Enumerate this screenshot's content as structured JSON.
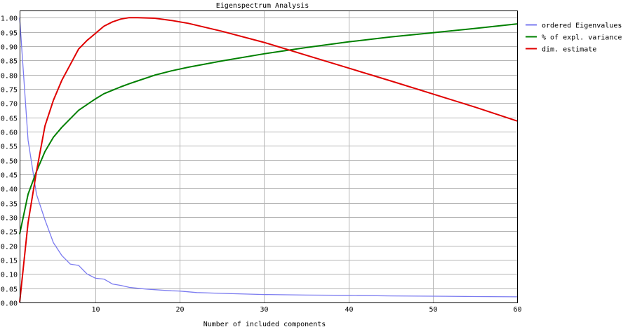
{
  "chart_data": {
    "type": "line",
    "title": "Eigenspectrum Analysis",
    "xlabel": "Number of included components",
    "ylabel": "",
    "xlim": [
      1,
      60
    ],
    "ylim": [
      0,
      1.025
    ],
    "x_ticks": [
      10,
      20,
      30,
      40,
      50,
      60
    ],
    "y_ticks": [
      0.0,
      0.05,
      0.1,
      0.15,
      0.2,
      0.25,
      0.3,
      0.35,
      0.4,
      0.45,
      0.5,
      0.55,
      0.6,
      0.65,
      0.7,
      0.75,
      0.8,
      0.85,
      0.9,
      0.95,
      1.0
    ],
    "grid": true,
    "legend_position": "right",
    "series": [
      {
        "name": "ordered Eigenvalues",
        "color": "#7b7bf0",
        "x": [
          1,
          2,
          3,
          4,
          5,
          6,
          7,
          8,
          9,
          10,
          11,
          12,
          13,
          14,
          15,
          16,
          17,
          18,
          19,
          20,
          22,
          25,
          30,
          35,
          40,
          45,
          50,
          55,
          60
        ],
        "y": [
          1.0,
          0.57,
          0.38,
          0.29,
          0.21,
          0.165,
          0.135,
          0.13,
          0.1,
          0.085,
          0.082,
          0.065,
          0.06,
          0.053,
          0.05,
          0.047,
          0.045,
          0.043,
          0.041,
          0.04,
          0.035,
          0.032,
          0.028,
          0.026,
          0.025,
          0.023,
          0.022,
          0.021,
          0.02
        ]
      },
      {
        "name": "% of expl. variance",
        "color": "#008000",
        "x": [
          1,
          2,
          3,
          4,
          5,
          6,
          7,
          8,
          9,
          10,
          11,
          12,
          13,
          14,
          15,
          17,
          19,
          21,
          23,
          25,
          30,
          35,
          40,
          45,
          50,
          55,
          60
        ],
        "y": [
          0.24,
          0.38,
          0.46,
          0.53,
          0.58,
          0.615,
          0.645,
          0.675,
          0.695,
          0.715,
          0.733,
          0.745,
          0.757,
          0.768,
          0.778,
          0.798,
          0.813,
          0.826,
          0.837,
          0.848,
          0.873,
          0.895,
          0.915,
          0.932,
          0.947,
          0.962,
          0.978
        ]
      },
      {
        "name": "dim. estimate",
        "color": "#e00000",
        "x": [
          1,
          2,
          3,
          4,
          5,
          6,
          7,
          8,
          9,
          10,
          11,
          12,
          13,
          14,
          15,
          17,
          19,
          21,
          25,
          30,
          35,
          40,
          45,
          50,
          55,
          60
        ],
        "y": [
          0.0,
          0.28,
          0.46,
          0.62,
          0.71,
          0.78,
          0.835,
          0.89,
          0.92,
          0.945,
          0.97,
          0.985,
          0.995,
          1.0,
          1.0,
          0.998,
          0.99,
          0.98,
          0.952,
          0.913,
          0.868,
          0.823,
          0.778,
          0.732,
          0.686,
          0.637
        ]
      }
    ]
  }
}
